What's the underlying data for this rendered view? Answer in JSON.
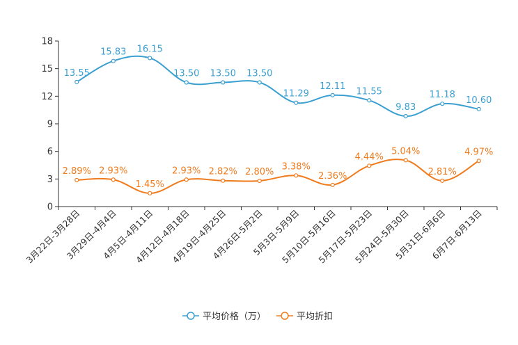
{
  "chart_data": {
    "type": "line",
    "categories": [
      "3月22日-3月28日",
      "3月29日-4月4日",
      "4月5日-4月11日",
      "4月12日-4月18日",
      "4月19日-4月25日",
      "4月26日-5月2日",
      "5月3日-5月9日",
      "5月10日-5月16日",
      "5月17日-5月23日",
      "5月24日-5月30日",
      "5月31日-6月6日",
      "6月7日-6月13日"
    ],
    "ylim": [
      0,
      18
    ],
    "yticks": [
      0,
      3,
      6,
      9,
      12,
      15,
      18
    ],
    "series": [
      {
        "name": "平均价格（万）",
        "color": "#3a9fd1",
        "values": [
          13.55,
          15.83,
          16.15,
          13.5,
          13.5,
          13.5,
          11.29,
          12.11,
          11.55,
          9.83,
          11.18,
          10.6
        ],
        "labels": [
          "13.55",
          "15.83",
          "16.15",
          "13.50",
          "13.50",
          "13.50",
          "11.29",
          "12.11",
          "11.55",
          "9.83",
          "11.18",
          "10.60"
        ]
      },
      {
        "name": "平均折扣",
        "color": "#f07b1d",
        "values": [
          2.89,
          2.93,
          1.45,
          2.93,
          2.82,
          2.8,
          3.38,
          2.36,
          4.44,
          5.04,
          2.81,
          4.97
        ],
        "labels": [
          "2.89%",
          "2.93%",
          "1.45%",
          "2.93%",
          "2.82%",
          "2.80%",
          "3.38%",
          "2.36%",
          "4.44%",
          "5.04%",
          "2.81%",
          "4.97%"
        ]
      }
    ],
    "title": "",
    "xlabel": "",
    "ylabel": "",
    "legend": "bottom-center"
  }
}
